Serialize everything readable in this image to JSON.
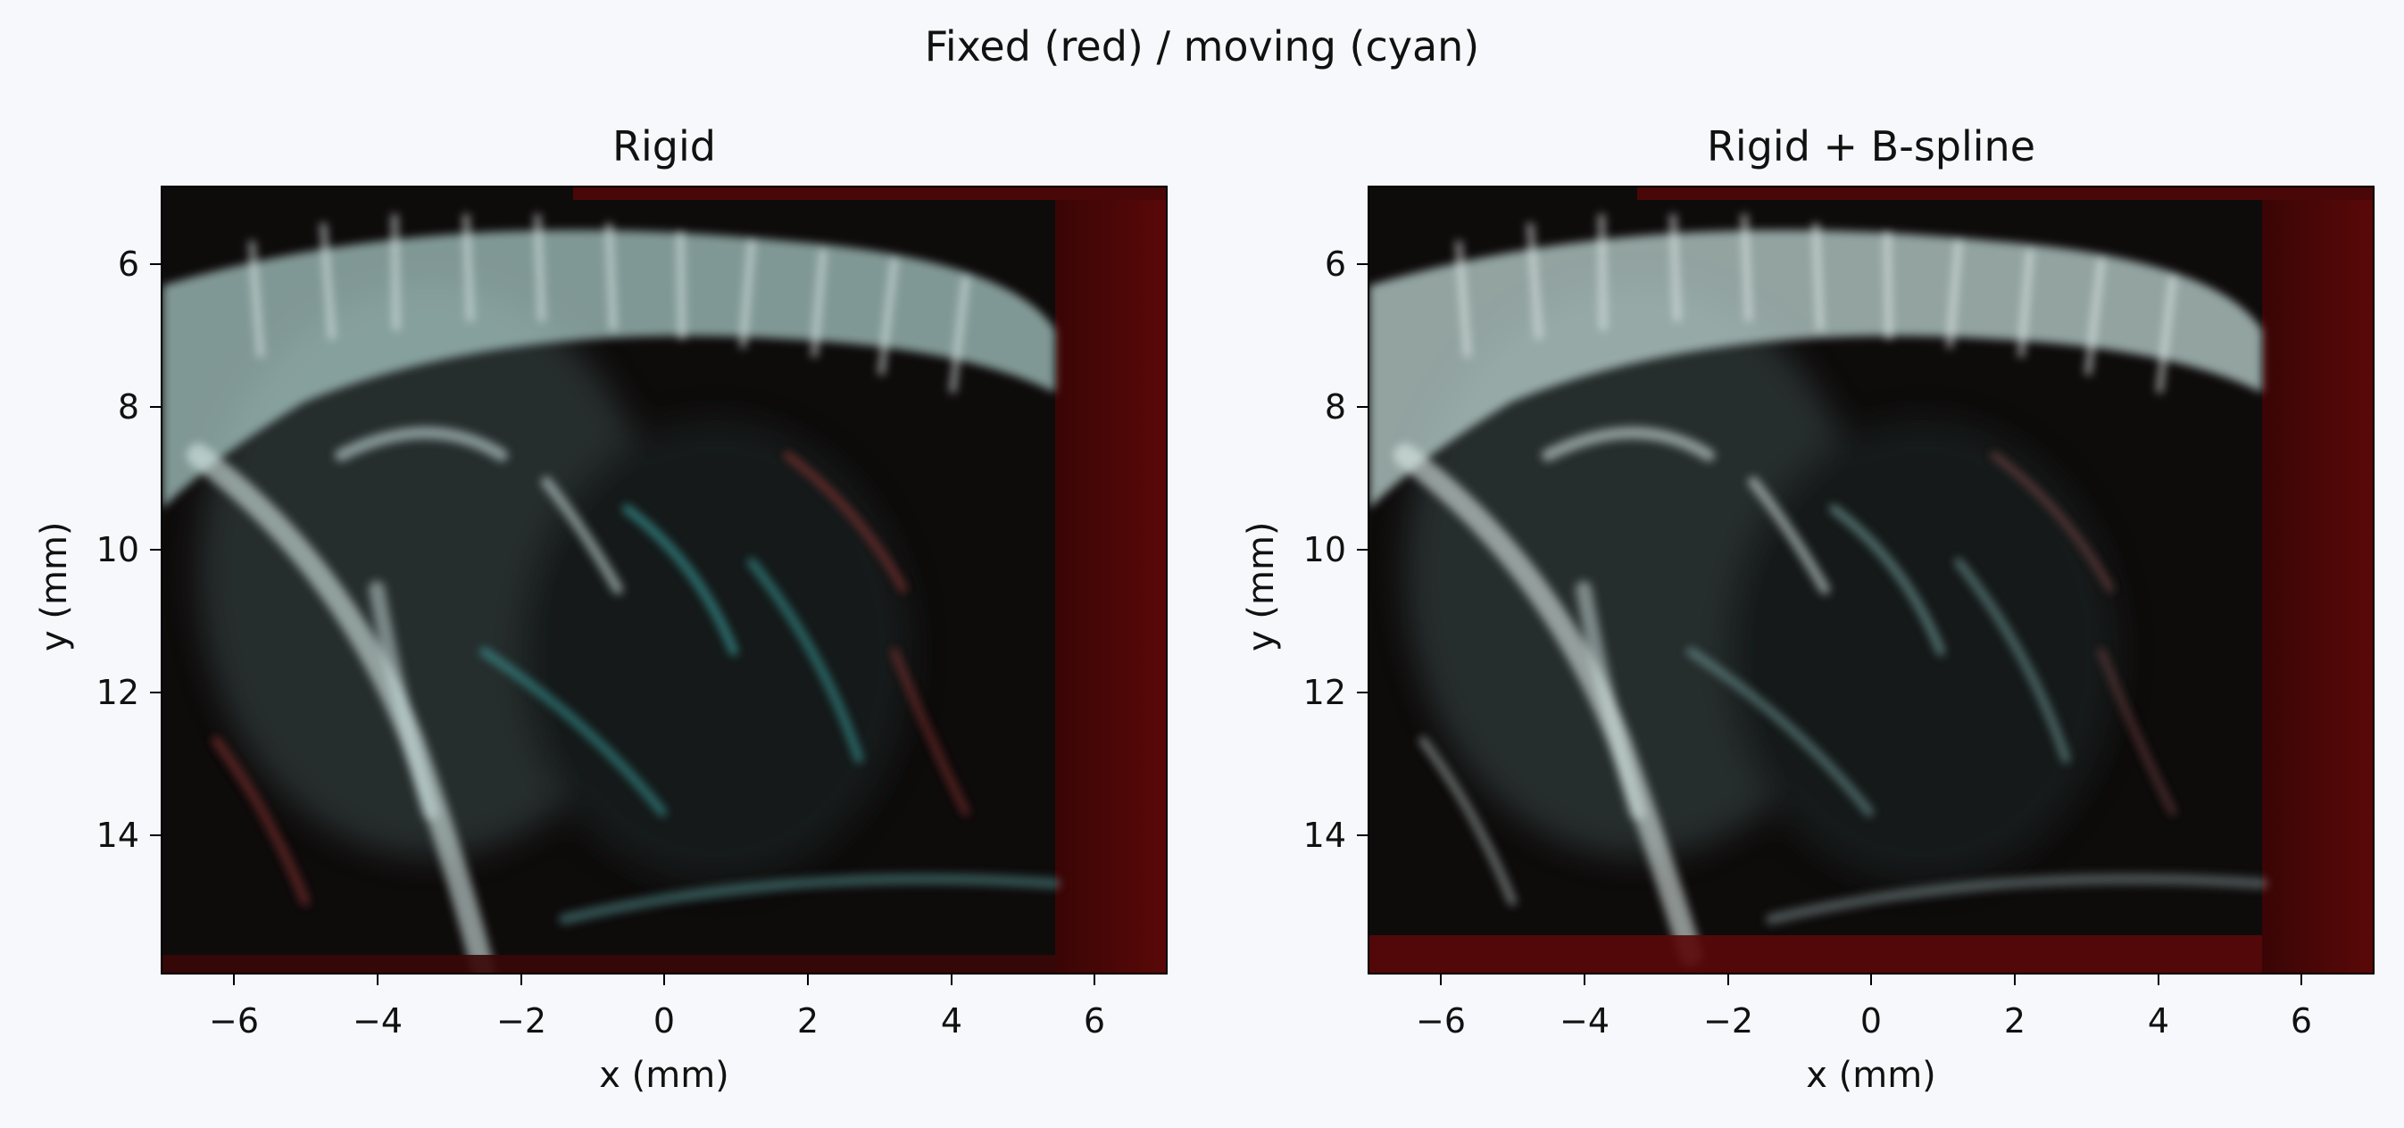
{
  "suptitle": "Fixed (red) / moving (cyan)",
  "panels": [
    {
      "title": "Rigid",
      "xlabel": "x (mm)",
      "ylabel": "y (mm)",
      "xticks": [
        "−6",
        "−4",
        "−2",
        "0",
        "2",
        "4",
        "6"
      ],
      "yticks": [
        "6",
        "8",
        "10",
        "12",
        "14"
      ]
    },
    {
      "title": "Rigid + B-spline",
      "xlabel": "x (mm)",
      "ylabel": "y (mm)",
      "xticks": [
        "−6",
        "−4",
        "−2",
        "0",
        "2",
        "4",
        "6"
      ],
      "yticks": [
        "6",
        "8",
        "10",
        "12",
        "14"
      ]
    }
  ],
  "colors": {
    "fixed": "#ff2020",
    "moving": "#3fe0e0",
    "background": "#f6f8fb"
  }
}
